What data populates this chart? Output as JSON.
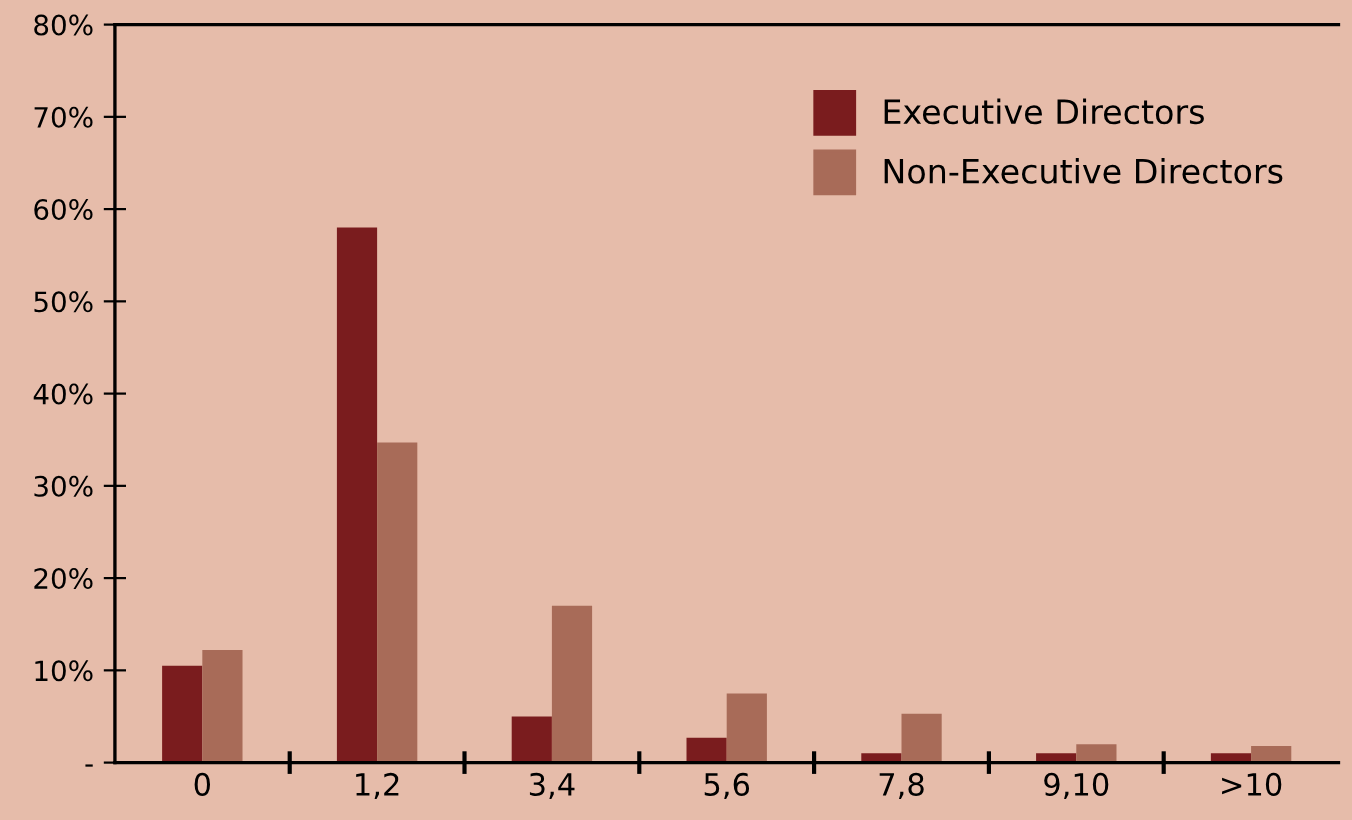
{
  "chart_data": {
    "type": "bar",
    "categories": [
      "0",
      "1,2",
      "3,4",
      "5,6",
      "7,8",
      "9,10",
      ">10"
    ],
    "series": [
      {
        "name": "Executive Directors",
        "color": "#7a1c1e",
        "values": [
          10.5,
          58,
          5,
          2.7,
          1,
          1,
          1
        ]
      },
      {
        "name": "Non-Executive Directors",
        "color": "#a86b58",
        "values": [
          12.2,
          34.7,
          17,
          7.5,
          5.3,
          2,
          1.8
        ]
      }
    ],
    "ylim": [
      0,
      80
    ],
    "yticks": [
      {
        "value": 0,
        "label": "-"
      },
      {
        "value": 10,
        "label": "10%"
      },
      {
        "value": 20,
        "label": "20%"
      },
      {
        "value": 30,
        "label": "30%"
      },
      {
        "value": 40,
        "label": "40%"
      },
      {
        "value": 50,
        "label": "50%"
      },
      {
        "value": 60,
        "label": "60%"
      },
      {
        "value": 70,
        "label": "70%"
      },
      {
        "value": 80,
        "label": "80%"
      }
    ],
    "grid": false,
    "legend": "top right"
  }
}
